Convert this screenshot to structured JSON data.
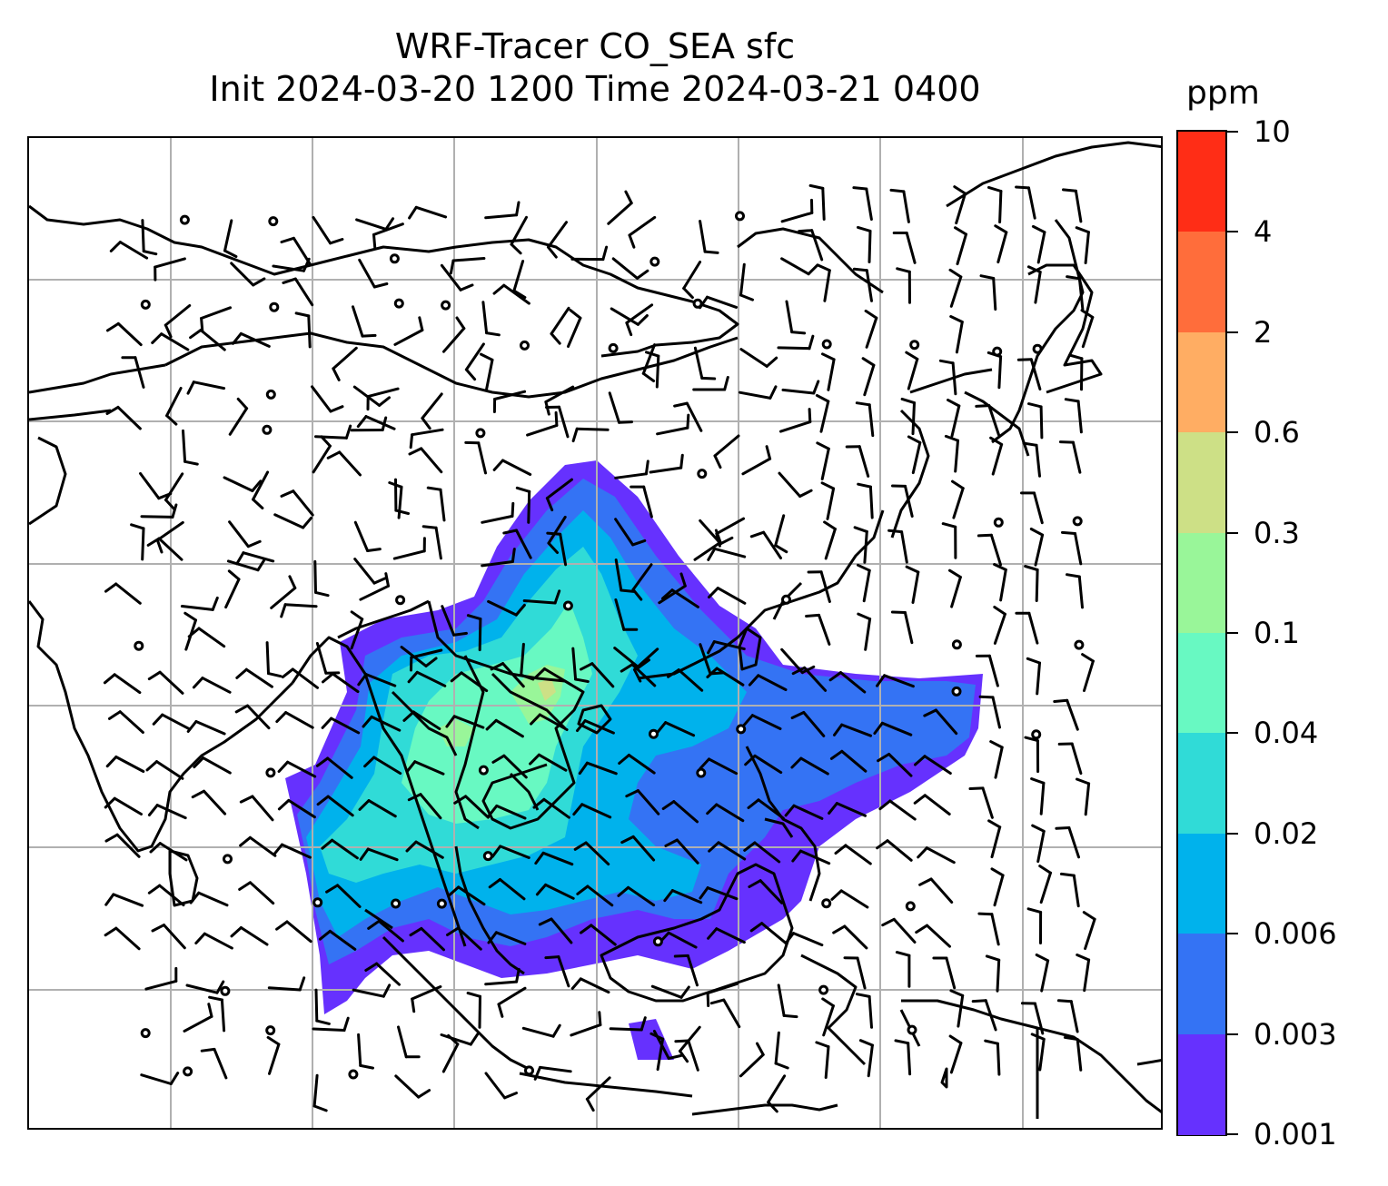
{
  "title": {
    "line1": "WRF-Tracer CO_SEA sfc",
    "line2": "Init 2024-03-20 1200 Time 2024-03-21 0400"
  },
  "colorbar": {
    "units": "ppm",
    "levels": [
      "10",
      "4",
      "2",
      "0.6",
      "0.3",
      "0.1",
      "0.04",
      "0.02",
      "0.006",
      "0.003",
      "0.001"
    ],
    "colors": [
      "#ff2d16",
      "#ff6d3b",
      "#ffad63",
      "#cde086",
      "#99f699",
      "#68f9c2",
      "#30dbd7",
      "#00b2ec",
      "#3473f4",
      "#6631fe"
    ]
  },
  "map": {
    "gridlines": true,
    "coastline_color": "#000000",
    "grid_color": "#b0b0b0"
  }
}
